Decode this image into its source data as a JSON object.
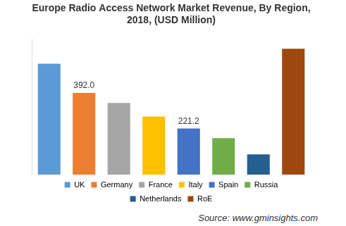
{
  "chart_data": {
    "type": "bar",
    "title": [
      "Europe Radio Access Network Market Revenue, By Region,",
      "2018, (USD Million)"
    ],
    "categories": [
      "UK",
      "Germany",
      "France",
      "Italy",
      "Spain",
      "Russia",
      "Netherlands",
      "RoE"
    ],
    "values": [
      532,
      392,
      344,
      279,
      221.2,
      175,
      97,
      604
    ],
    "value_labels": [
      null,
      "392.0",
      null,
      null,
      "221.2",
      null,
      null,
      null
    ],
    "data_labels": true,
    "colors": [
      "#5b9bd5",
      "#ed7d31",
      "#a5a5a5",
      "#ffc000",
      "#4472c4",
      "#70ad47",
      "#255e91",
      "#9e480e"
    ],
    "ylim": [
      0,
      650
    ],
    "tick_labels": false,
    "grid": false,
    "legend": "bottom",
    "annotations": [
      "Source: www.gminsights.com"
    ]
  }
}
